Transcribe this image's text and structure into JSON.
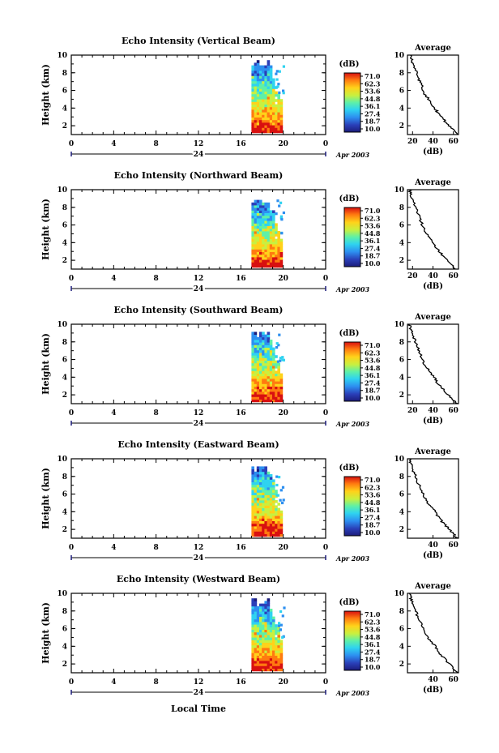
{
  "figure": {
    "xlabel": "Local Time",
    "day_label": "24",
    "month_year": "Apr 2003",
    "colorbar_unit": "(dB)",
    "avg_title": "Average"
  },
  "chart_data": [
    {
      "type": "heatmap",
      "title": "Echo Intensity (Vertical Beam)",
      "ylabel": "Height (km)",
      "xlabel": "",
      "x_ticks": [
        "0",
        "4",
        "8",
        "12",
        "16",
        "20",
        "0"
      ],
      "y_ticks": [
        "2",
        "4",
        "6",
        "8",
        "10"
      ],
      "xlim": [
        0,
        24
      ],
      "ylim": [
        1,
        10
      ],
      "colorbar": {
        "ticks": [
          "71.0",
          "62.3",
          "53.6",
          "44.8",
          "36.1",
          "27.4",
          "18.7",
          "10.0"
        ],
        "range": [
          10,
          71
        ]
      },
      "echo_region": {
        "start_hour": 17.0,
        "end_hour": 19.8,
        "max_height_km": 9.3
      },
      "average": {
        "xlabel": "(dB)",
        "x_ticks": [
          "20",
          "40",
          "60"
        ],
        "xlim": [
          15,
          65
        ],
        "y_ticks": [
          "2",
          "4",
          "6",
          "8",
          "10"
        ],
        "profile": [
          [
            64,
            1.0
          ],
          [
            60,
            1.5
          ],
          [
            56,
            2.0
          ],
          [
            52,
            2.5
          ],
          [
            48,
            3.0
          ],
          [
            44,
            3.6
          ],
          [
            42,
            4.0
          ],
          [
            38,
            4.5
          ],
          [
            36,
            5.0
          ],
          [
            32,
            5.6
          ],
          [
            30,
            6.2
          ],
          [
            28,
            6.8
          ],
          [
            26,
            7.3
          ],
          [
            24,
            8.0
          ],
          [
            22,
            8.6
          ],
          [
            20,
            9.2
          ],
          [
            19,
            9.6
          ],
          [
            18,
            10.0
          ]
        ]
      }
    },
    {
      "type": "heatmap",
      "title": "Echo Intensity (Northward Beam)",
      "ylabel": "Height (km)",
      "xlabel": "",
      "x_ticks": [
        "0",
        "4",
        "8",
        "12",
        "16",
        "20",
        "0"
      ],
      "y_ticks": [
        "2",
        "4",
        "6",
        "8",
        "10"
      ],
      "xlim": [
        0,
        24
      ],
      "ylim": [
        1,
        10
      ],
      "colorbar": {
        "ticks": [
          "71.0",
          "62.3",
          "53.6",
          "44.8",
          "36.1",
          "27.4",
          "18.7",
          "10.0"
        ],
        "range": [
          10,
          71
        ]
      },
      "echo_region": {
        "start_hour": 17.0,
        "end_hour": 19.8,
        "max_height_km": 9.0
      },
      "average": {
        "xlabel": "(dB)",
        "x_ticks": [
          "20",
          "40",
          "60"
        ],
        "xlim": [
          15,
          65
        ],
        "y_ticks": [
          "2",
          "4",
          "6",
          "8",
          "10"
        ],
        "profile": [
          [
            62,
            1.0
          ],
          [
            58,
            1.5
          ],
          [
            54,
            2.0
          ],
          [
            50,
            2.5
          ],
          [
            46,
            3.0
          ],
          [
            42,
            3.6
          ],
          [
            40,
            4.0
          ],
          [
            36,
            4.6
          ],
          [
            34,
            5.0
          ],
          [
            31,
            5.6
          ],
          [
            29,
            6.2
          ],
          [
            27,
            6.8
          ],
          [
            25,
            7.4
          ],
          [
            23,
            8.0
          ],
          [
            21,
            8.6
          ],
          [
            19,
            9.2
          ],
          [
            18,
            9.6
          ],
          [
            17,
            10.0
          ]
        ]
      }
    },
    {
      "type": "heatmap",
      "title": "Echo Intensity (Southward Beam)",
      "ylabel": "Height (km)",
      "xlabel": "",
      "x_ticks": [
        "0",
        "4",
        "8",
        "12",
        "16",
        "20",
        "0"
      ],
      "y_ticks": [
        "2",
        "4",
        "6",
        "8",
        "10"
      ],
      "xlim": [
        0,
        24
      ],
      "ylim": [
        1,
        10
      ],
      "colorbar": {
        "ticks": [
          "71.0",
          "62.3",
          "53.6",
          "44.8",
          "36.1",
          "27.4",
          "18.7",
          "10.0"
        ],
        "range": [
          10,
          71
        ]
      },
      "echo_region": {
        "start_hour": 17.0,
        "end_hour": 19.8,
        "max_height_km": 9.3
      },
      "average": {
        "xlabel": "(dB)",
        "x_ticks": [
          "20",
          "40",
          "60"
        ],
        "xlim": [
          15,
          65
        ],
        "y_ticks": [
          "2",
          "4",
          "6",
          "8",
          "10"
        ],
        "profile": [
          [
            63,
            1.0
          ],
          [
            59,
            1.5
          ],
          [
            55,
            2.0
          ],
          [
            51,
            2.5
          ],
          [
            47,
            3.0
          ],
          [
            43,
            3.6
          ],
          [
            41,
            4.0
          ],
          [
            37,
            4.6
          ],
          [
            35,
            5.0
          ],
          [
            31,
            5.6
          ],
          [
            29,
            6.2
          ],
          [
            27,
            6.8
          ],
          [
            25,
            7.4
          ],
          [
            23,
            8.0
          ],
          [
            21,
            8.6
          ],
          [
            19,
            9.2
          ],
          [
            18,
            9.6
          ],
          [
            17,
            10.0
          ]
        ]
      }
    },
    {
      "type": "heatmap",
      "title": "Echo Intensity (Eastward Beam)",
      "ylabel": "Height (km)",
      "xlabel": "",
      "x_ticks": [
        "0",
        "4",
        "8",
        "12",
        "16",
        "20",
        "0"
      ],
      "y_ticks": [
        "2",
        "4",
        "6",
        "8",
        "10"
      ],
      "xlim": [
        0,
        24
      ],
      "ylim": [
        1,
        10
      ],
      "colorbar": {
        "ticks": [
          "71.0",
          "62.3",
          "53.6",
          "44.8",
          "36.1",
          "27.4",
          "18.7",
          "10.0"
        ],
        "range": [
          10,
          71
        ]
      },
      "echo_region": {
        "start_hour": 17.0,
        "end_hour": 19.8,
        "max_height_km": 9.2
      },
      "average": {
        "xlabel": "(dB)",
        "x_ticks": [
          "40",
          "60"
        ],
        "xlim": [
          15,
          65
        ],
        "y_ticks": [
          "2",
          "4",
          "6",
          "8",
          "10"
        ],
        "profile": [
          [
            64,
            1.0
          ],
          [
            60,
            1.5
          ],
          [
            56,
            2.0
          ],
          [
            52,
            2.5
          ],
          [
            48,
            3.0
          ],
          [
            44,
            3.6
          ],
          [
            42,
            4.0
          ],
          [
            38,
            4.6
          ],
          [
            35,
            5.0
          ],
          [
            32,
            5.6
          ],
          [
            30,
            6.2
          ],
          [
            27,
            6.8
          ],
          [
            25,
            7.4
          ],
          [
            23,
            8.0
          ],
          [
            21,
            8.6
          ],
          [
            19,
            9.2
          ],
          [
            18,
            9.6
          ],
          [
            17,
            10.0
          ]
        ]
      }
    },
    {
      "type": "heatmap",
      "title": "Echo Intensity (Westward Beam)",
      "ylabel": "Height (km)",
      "xlabel": "",
      "x_ticks": [
        "0",
        "4",
        "8",
        "12",
        "16",
        "20",
        "0"
      ],
      "y_ticks": [
        "2",
        "4",
        "6",
        "8",
        "10"
      ],
      "xlim": [
        0,
        24
      ],
      "ylim": [
        1,
        10
      ],
      "colorbar": {
        "ticks": [
          "71.0",
          "62.3",
          "53.6",
          "44.8",
          "36.1",
          "27.4",
          "18.7",
          "10.0"
        ],
        "range": [
          10,
          71
        ]
      },
      "echo_region": {
        "start_hour": 17.0,
        "end_hour": 19.8,
        "max_height_km": 9.3
      },
      "average": {
        "xlabel": "(dB)",
        "x_ticks": [
          "40",
          "60"
        ],
        "xlim": [
          15,
          65
        ],
        "y_ticks": [
          "2",
          "4",
          "6",
          "8",
          "10"
        ],
        "profile": [
          [
            64,
            1.0
          ],
          [
            60,
            1.5
          ],
          [
            56,
            2.0
          ],
          [
            52,
            2.5
          ],
          [
            48,
            3.0
          ],
          [
            44,
            3.6
          ],
          [
            42,
            4.0
          ],
          [
            38,
            4.6
          ],
          [
            35,
            5.0
          ],
          [
            32,
            5.6
          ],
          [
            30,
            6.2
          ],
          [
            27,
            6.8
          ],
          [
            25,
            7.4
          ],
          [
            23,
            8.0
          ],
          [
            21,
            8.6
          ],
          [
            19,
            9.2
          ],
          [
            18,
            9.6
          ],
          [
            17,
            10.0
          ]
        ]
      }
    }
  ]
}
